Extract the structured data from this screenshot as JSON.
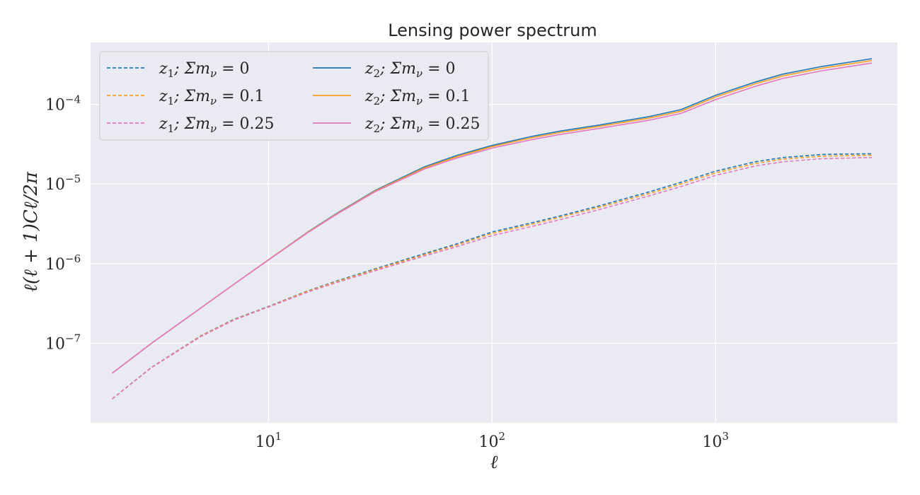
{
  "chart_data": {
    "type": "line",
    "title": "Lensing power spectrum",
    "xlabel": "ℓ",
    "ylabel": "ℓ(ℓ + 1)Cℓ/2π",
    "xscale": "log",
    "yscale": "log",
    "xlim": [
      1.6,
      6500
    ],
    "ylim": [
      1e-08,
      0.0006
    ],
    "x_ticks": [
      {
        "base": "10",
        "exp": "1",
        "value": 10
      },
      {
        "base": "10",
        "exp": "2",
        "value": 100
      },
      {
        "base": "10",
        "exp": "3",
        "value": 1000
      }
    ],
    "y_ticks": [
      {
        "base": "10",
        "exp": "−7",
        "value": 1e-07
      },
      {
        "base": "10",
        "exp": "−6",
        "value": 1e-06
      },
      {
        "base": "10",
        "exp": "−5",
        "value": 1e-05
      },
      {
        "base": "10",
        "exp": "−4",
        "value": 0.0001
      }
    ],
    "grid": true,
    "legend_placement": "top-left",
    "legend_columns": 2,
    "x": [
      2,
      3,
      5,
      7,
      10,
      15,
      20,
      30,
      50,
      70,
      100,
      150,
      200,
      300,
      500,
      700,
      1000,
      1500,
      2000,
      3000,
      5000
    ],
    "series": [
      {
        "name": "z1; Σmν = 0",
        "color": "#1f77b4",
        "style": "dashed",
        "values": [
          2e-08,
          5e-08,
          1.25e-07,
          2e-07,
          2.9e-07,
          4.55e-07,
          6e-07,
          8.6e-07,
          1.34e-06,
          1.78e-06,
          2.5e-06,
          3.25e-06,
          3.95e-06,
          5.3e-06,
          7.9e-06,
          1.05e-05,
          1.45e-05,
          1.9e-05,
          2.15e-05,
          2.35e-05,
          2.4e-05
        ]
      },
      {
        "name": "z1; Σmν = 0.1",
        "color": "#ff9f1c",
        "style": "dashed",
        "values": [
          2e-08,
          4.98e-08,
          1.24e-07,
          1.98e-07,
          2.88e-07,
          4.5e-07,
          5.9e-07,
          8.4e-07,
          1.3e-06,
          1.72e-06,
          2.4e-06,
          3.12e-06,
          3.8e-06,
          5.08e-06,
          7.55e-06,
          1e-05,
          1.38e-05,
          1.81e-05,
          2.05e-05,
          2.24e-05,
          2.3e-05
        ]
      },
      {
        "name": "z1; Σmν = 0.25",
        "color": "#e377c2",
        "style": "dashed",
        "values": [
          2e-08,
          4.95e-08,
          1.22e-07,
          1.95e-07,
          2.85e-07,
          4.4e-07,
          5.75e-07,
          8.15e-07,
          1.25e-06,
          1.64e-06,
          2.25e-06,
          2.92e-06,
          3.55e-06,
          4.75e-06,
          7.05e-06,
          9.3e-06,
          1.28e-05,
          1.68e-05,
          1.9e-05,
          2.08e-05,
          2.15e-05
        ]
      },
      {
        "name": "z2; Σmν = 0",
        "color": "#1f77b4",
        "style": "solid",
        "values": [
          4.2e-08,
          1e-07,
          2.8e-07,
          5.5e-07,
          1.12e-06,
          2.5e-06,
          4.2e-06,
          8.3e-06,
          1.65e-05,
          2.3e-05,
          3.05e-05,
          3.95e-05,
          4.6e-05,
          5.5e-05,
          7e-05,
          8.6e-05,
          0.00013,
          0.00019,
          0.00024,
          0.0003,
          0.000375
        ]
      },
      {
        "name": "z2; Σmν = 0.1",
        "color": "#ff9f1c",
        "style": "solid",
        "values": [
          4.2e-08,
          1e-07,
          2.8e-07,
          5.5e-07,
          1.12e-06,
          2.48e-06,
          4.15e-06,
          8.15e-06,
          1.6e-05,
          2.22e-05,
          2.95e-05,
          3.8e-05,
          4.42e-05,
          5.28e-05,
          6.7e-05,
          8.2e-05,
          0.000124,
          0.000181,
          0.000228,
          0.000285,
          0.000355
        ]
      },
      {
        "name": "z2; Σmν = 0.25",
        "color": "#e377c2",
        "style": "solid",
        "values": [
          4.2e-08,
          1e-07,
          2.8e-07,
          5.5e-07,
          1.11e-06,
          2.45e-06,
          4.1e-06,
          8e-06,
          1.55e-05,
          2.13e-05,
          2.82e-05,
          3.6e-05,
          4.18e-05,
          4.98e-05,
          6.3e-05,
          7.7e-05,
          0.000115,
          0.000168,
          0.000212,
          0.000265,
          0.00033
        ]
      }
    ],
    "legend": [
      {
        "prefix": "z",
        "sub": "1",
        "rest": "; Σm",
        "nu": "ν",
        "value": " = 0"
      },
      {
        "prefix": "z",
        "sub": "1",
        "rest": "; Σm",
        "nu": "ν",
        "value": " = 0.1"
      },
      {
        "prefix": "z",
        "sub": "1",
        "rest": "; Σm",
        "nu": "ν",
        "value": " = 0.25"
      },
      {
        "prefix": "z",
        "sub": "2",
        "rest": "; Σm",
        "nu": "ν",
        "value": " = 0"
      },
      {
        "prefix": "z",
        "sub": "2",
        "rest": "; Σm",
        "nu": "ν",
        "value": " = 0.1"
      },
      {
        "prefix": "z",
        "sub": "2",
        "rest": "; Σm",
        "nu": "ν",
        "value": " = 0.25"
      }
    ],
    "colors": {
      "plot_background": "#eaeaf2",
      "grid": "#ffffff",
      "text": "#262626"
    }
  }
}
